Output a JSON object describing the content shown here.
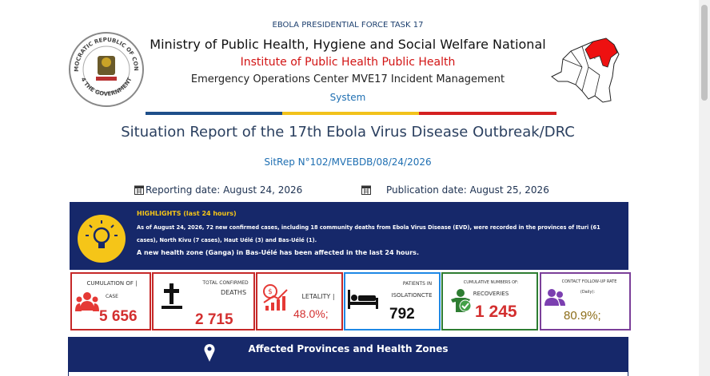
{
  "seal": {
    "top": "DEMOCRATIC REPUBLIC OF CONGO",
    "bottom": "4 THE GOVERNMENT"
  },
  "header": {
    "task_force": "EBOLA PRESIDENTIAL FORCE TASK 17",
    "ministry": "Ministry of Public Health, Hygiene and Social Welfare National",
    "institute": "Institute of Public Health Public Health",
    "center": "Emergency Operations Center MVE17 Incident Management",
    "system": "System"
  },
  "report": {
    "title": "Situation Report of the 17th Ebola Virus Disease Outbreak/DRC",
    "sitrep": "SitRep N°102/MVEBDB/08/24/2026",
    "reporting_date": "Reporting date: August 24, 2026",
    "publication_date": "Publication date: August 25, 2026"
  },
  "highlights": {
    "title": "HIGHLIGHTS (last 24 hours)",
    "paragraphs": [
      "As of August 24, 2026, 72 new confirmed cases, including 18 community deaths from Ebola Virus Disease (EVD), were recorded in the provinces of Ituri (61 cases), North Kivu (7 cases), Haut Uélé (3) and Bas-Uélé (1).",
      "A new health zone (Ganga) in Bas-Uélé has been affected in the last 24 hours."
    ]
  },
  "cards": [
    {
      "label": [
        "CUMULATION OF |",
        "CASE"
      ],
      "value": "5 656"
    },
    {
      "label": [
        "TOTAL CONFIRMED",
        "DEATHS"
      ],
      "value": "2 715"
    },
    {
      "label": [
        "LETALITY |"
      ],
      "value": "48.0%;"
    },
    {
      "label": [
        "PATIENTS IN",
        "ISOLATIONCTE"
      ],
      "value": "792"
    },
    {
      "label": [
        "CUMULATIVE NUMBERS OF:",
        "RECOVERIES"
      ],
      "value": "1 245"
    },
    {
      "label": [
        "CONTACT FOLLOW-UP RATE",
        "(Daily):"
      ],
      "value": "80.9%;"
    }
  ],
  "section": {
    "title": "Affected Provinces and Health Zones"
  }
}
